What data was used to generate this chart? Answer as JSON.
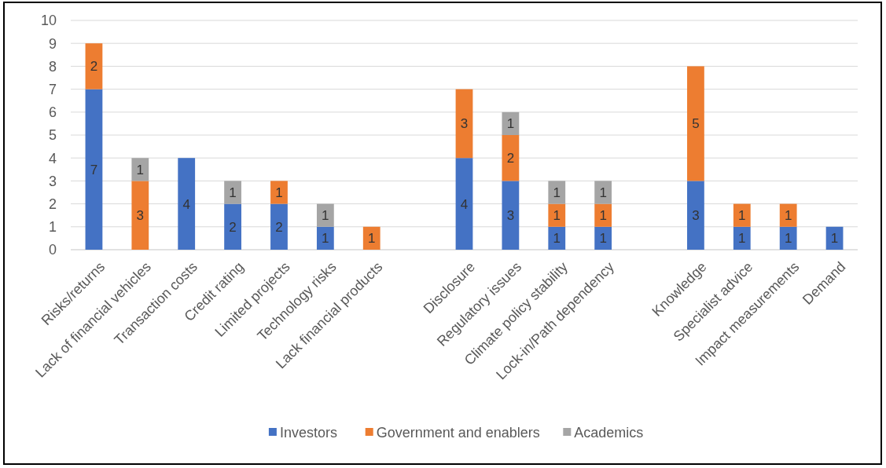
{
  "chart_data": {
    "type": "bar",
    "stacked": true,
    "categories": [
      "Risks/returns",
      "Lack of financial vehicles",
      "Transaction costs",
      "Credit rating",
      "Limited projects",
      "Technology risks",
      "Lack financial products",
      null,
      "Disclosure",
      "Regulatory issues",
      "Climate policy stability",
      "Lock-in/Path dependency",
      null,
      "Knowledge",
      "Specialist advice",
      "Impact measurements",
      "Demand"
    ],
    "series": [
      {
        "name": "Investors",
        "color": "#4472c4",
        "values": [
          7,
          null,
          4,
          2,
          2,
          1,
          null,
          null,
          4,
          3,
          1,
          1,
          null,
          3,
          1,
          1,
          1
        ]
      },
      {
        "name": "Government and enablers",
        "color": "#ed7d31",
        "values": [
          2,
          3,
          null,
          null,
          1,
          null,
          1,
          null,
          3,
          2,
          1,
          1,
          null,
          5,
          1,
          1,
          null
        ]
      },
      {
        "name": "Academics",
        "color": "#a5a5a5",
        "values": [
          null,
          1,
          null,
          1,
          null,
          1,
          null,
          null,
          null,
          1,
          1,
          1,
          null,
          null,
          null,
          null,
          null
        ]
      }
    ],
    "ylim": [
      0,
      10
    ],
    "yticks": [
      0,
      1,
      2,
      3,
      4,
      5,
      6,
      7,
      8,
      9,
      10
    ],
    "grid": "y",
    "legend": "bottom",
    "data_labels": true
  }
}
